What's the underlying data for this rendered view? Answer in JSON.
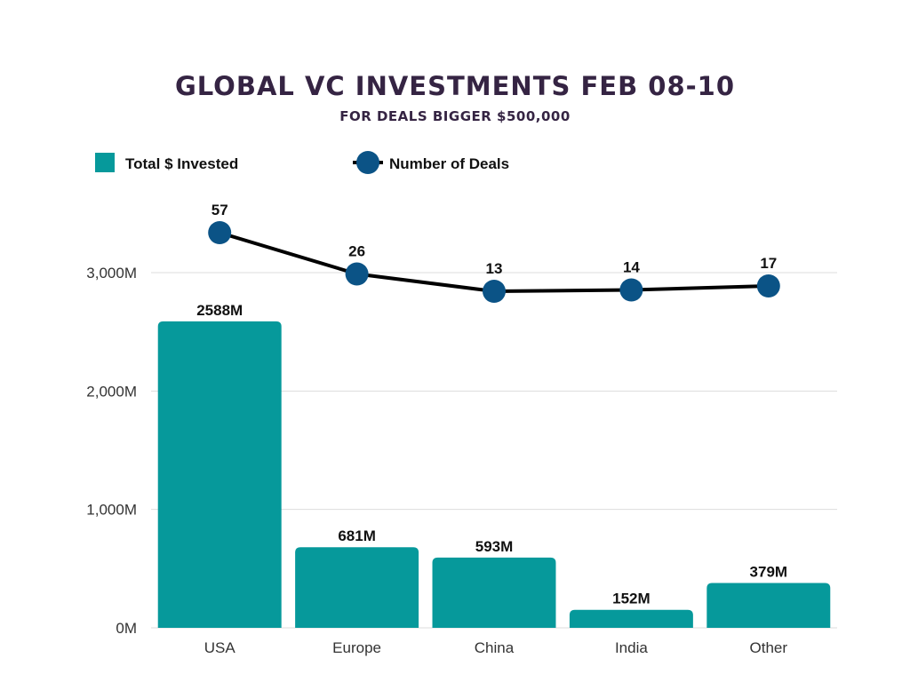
{
  "title": "GLOBAL VC INVESTMENTS FEB 08-10",
  "subtitle": "FOR DEALS BIGGER $500,000",
  "colors": {
    "bar": "#06999b",
    "line": "#000000",
    "marker": "#0b5386",
    "grid": "#dddddd",
    "title": "#352443"
  },
  "chart_data": {
    "type": "bar",
    "categories": [
      "USA",
      "Europe",
      "China",
      "India",
      "Other"
    ],
    "series": [
      {
        "name": "Total $ Invested",
        "type": "bar",
        "values": [
          2588,
          681,
          593,
          152,
          379
        ],
        "labels": [
          "2588M",
          "681M",
          "593M",
          "152M",
          "379M"
        ]
      },
      {
        "name": "Number of Deals",
        "type": "line",
        "values": [
          57,
          26,
          13,
          14,
          17
        ],
        "labels": [
          "57",
          "26",
          "13",
          "14",
          "17"
        ]
      }
    ],
    "y_ticks": [
      "0M",
      "1,000M",
      "2,000M",
      "3,000M"
    ],
    "ylim": [
      0,
      3000
    ],
    "legend_position": "top-left",
    "grid": true
  }
}
